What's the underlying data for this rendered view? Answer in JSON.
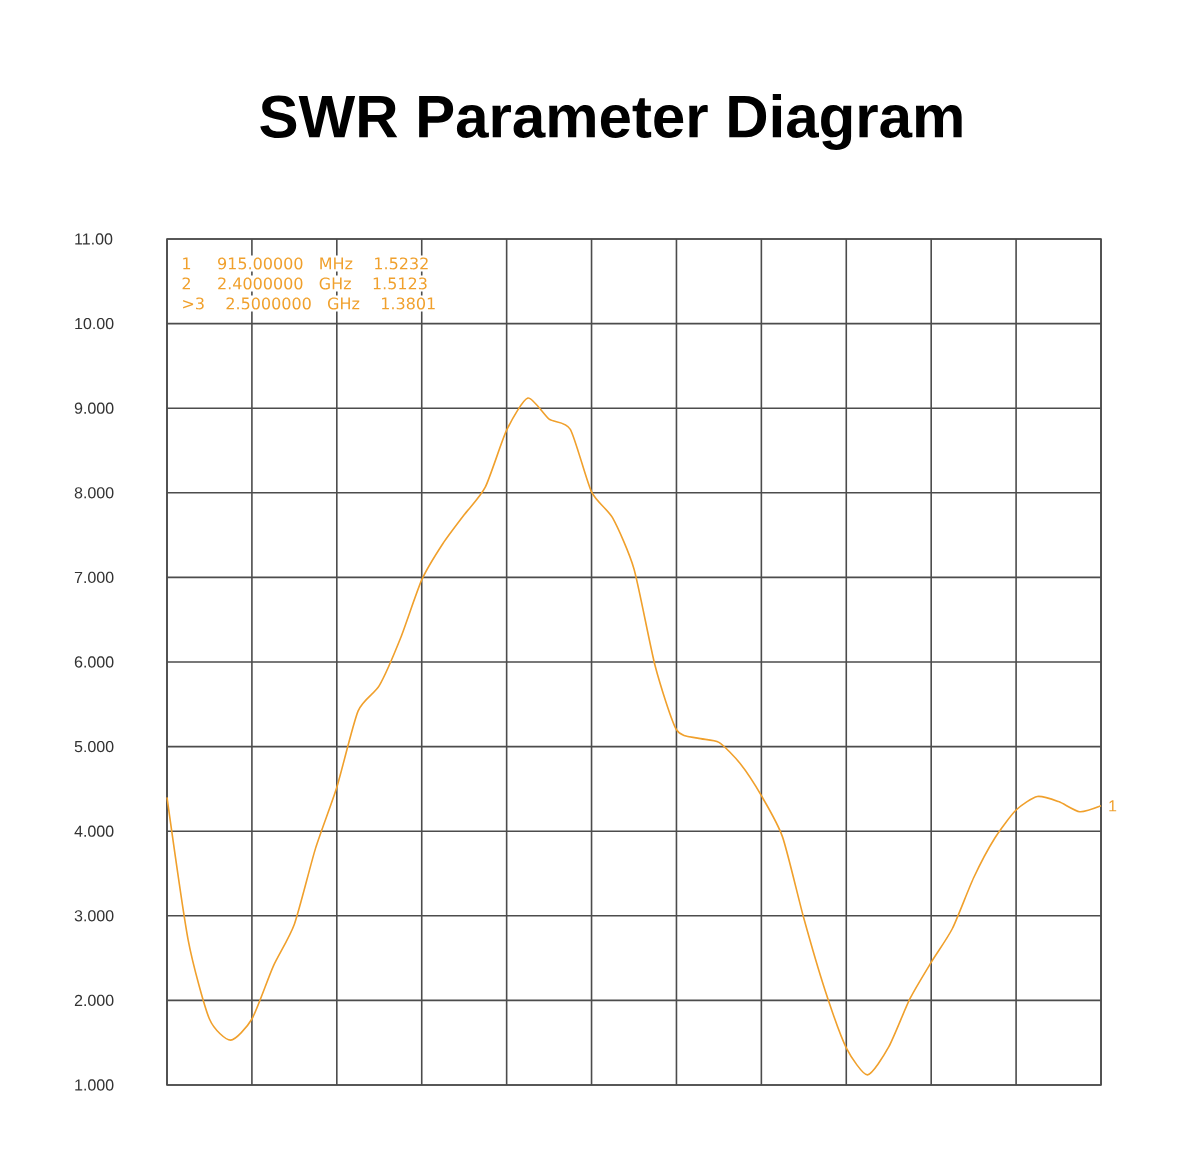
{
  "chart_data": {
    "type": "line",
    "title": "SWR Parameter Diagram",
    "categories": [
      null,
      null,
      null,
      null,
      null,
      null,
      null,
      null,
      null,
      null,
      null,
      null,
      null,
      null,
      null,
      null,
      null,
      null,
      null,
      null,
      null,
      null,
      null,
      null,
      null,
      null,
      null,
      null,
      null,
      null,
      null,
      null,
      null,
      null,
      null,
      null,
      null,
      null,
      null,
      null,
      null,
      null,
      null,
      null,
      null
    ],
    "series": [
      {
        "name": "1",
        "color": "#f0a02c",
        "values": [
          4.4,
          2.71,
          1.78,
          1.53,
          1.78,
          2.4,
          2.9,
          3.8,
          4.52,
          5.42,
          5.72,
          6.28,
          6.97,
          7.4,
          7.74,
          8.07,
          8.74,
          9.12,
          8.87,
          8.75,
          8.01,
          7.7,
          7.1,
          5.95,
          5.2,
          5.1,
          5.05,
          4.8,
          4.42,
          3.93,
          2.97,
          2.12,
          1.44,
          1.12,
          1.45,
          2.02,
          2.45,
          2.85,
          3.45,
          3.92,
          4.25,
          4.41,
          4.35,
          4.23,
          4.3
        ]
      }
    ],
    "ylim": [
      1,
      11
    ],
    "yticks": [
      {
        "value": 1,
        "label": "1.000"
      },
      {
        "value": 2,
        "label": "2.000"
      },
      {
        "value": 3,
        "label": "3.000"
      },
      {
        "value": 4,
        "label": "4.000"
      },
      {
        "value": 5,
        "label": "5.000"
      },
      {
        "value": 6,
        "label": "6.000"
      },
      {
        "value": 7,
        "label": "7.000"
      },
      {
        "value": 8,
        "label": "8.000"
      },
      {
        "value": 9,
        "label": "9.000"
      },
      {
        "value": 10,
        "label": "10.00"
      },
      {
        "value": 11,
        "label": "11.00"
      }
    ],
    "grid": true,
    "tick_labels": "y",
    "marker": "none",
    "line_style": "solid",
    "annotations": [
      "1     915.00000   MHz    1.5232",
      "2     2.4000000   GHz    1.5123",
      ">3    2.5000000   GHz    1.3801"
    ]
  }
}
